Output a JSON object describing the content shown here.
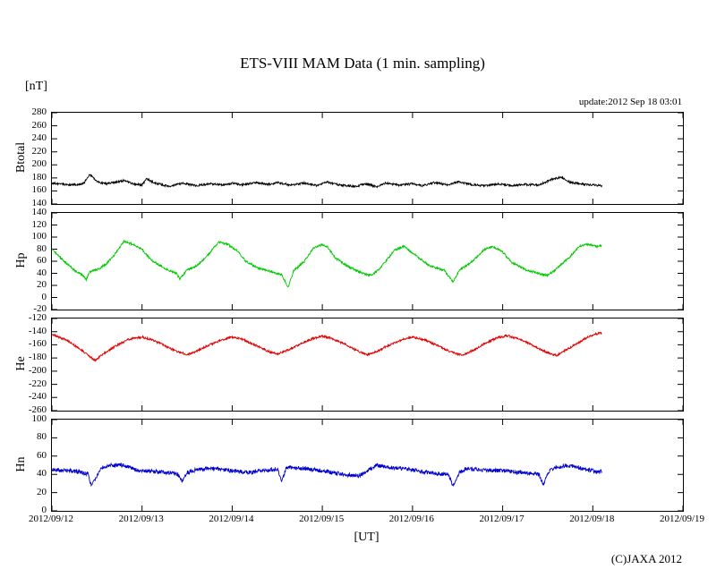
{
  "title": "ETS-VIII MAM Data (1 min. sampling)",
  "unit_label": "[nT]",
  "update_text": "update:2012 Sep 18 03:01",
  "copyright": "(C)JAXA 2012",
  "x_axis": {
    "label": "[UT]",
    "lim": [
      0,
      7
    ],
    "tick_labels": [
      "2012/09/12",
      "2012/09/13",
      "2012/09/14",
      "2012/09/15",
      "2012/09/16",
      "2012/09/17",
      "2012/09/18",
      "2012/09/19"
    ]
  },
  "chart_data": [
    {
      "type": "line",
      "ylabel": "Btotal",
      "color": "#000000",
      "ylim": [
        140,
        280
      ],
      "ytick_step": 20,
      "noise_amp": 1.6,
      "x_end": 6.1,
      "keypoints": [
        [
          0,
          172
        ],
        [
          0.2,
          169
        ],
        [
          0.35,
          171
        ],
        [
          0.42,
          186
        ],
        [
          0.5,
          174
        ],
        [
          0.6,
          171
        ],
        [
          0.8,
          176
        ],
        [
          0.9,
          171
        ],
        [
          1.0,
          169
        ],
        [
          1.05,
          178
        ],
        [
          1.15,
          172
        ],
        [
          1.3,
          167
        ],
        [
          1.45,
          172
        ],
        [
          1.6,
          168
        ],
        [
          1.75,
          171
        ],
        [
          1.9,
          169
        ],
        [
          2.0,
          172
        ],
        [
          2.1,
          169
        ],
        [
          2.25,
          173
        ],
        [
          2.4,
          170
        ],
        [
          2.5,
          173
        ],
        [
          2.65,
          169
        ],
        [
          2.8,
          172
        ],
        [
          2.95,
          168
        ],
        [
          3.05,
          174
        ],
        [
          3.2,
          169
        ],
        [
          3.35,
          167
        ],
        [
          3.5,
          171
        ],
        [
          3.6,
          166
        ],
        [
          3.7,
          172
        ],
        [
          3.85,
          169
        ],
        [
          4.0,
          171
        ],
        [
          4.1,
          168
        ],
        [
          4.25,
          173
        ],
        [
          4.4,
          169
        ],
        [
          4.5,
          174
        ],
        [
          4.65,
          170
        ],
        [
          4.8,
          168
        ],
        [
          4.95,
          171
        ],
        [
          5.1,
          168
        ],
        [
          5.25,
          170
        ],
        [
          5.4,
          169
        ],
        [
          5.55,
          178
        ],
        [
          5.65,
          181
        ],
        [
          5.75,
          173
        ],
        [
          5.9,
          170
        ],
        [
          6.0,
          169
        ],
        [
          6.1,
          168
        ]
      ]
    },
    {
      "type": "line",
      "ylabel": "Hp",
      "color": "#00c800",
      "ylim": [
        -20,
        140
      ],
      "ytick_step": 20,
      "noise_amp": 1.8,
      "x_end": 6.1,
      "keypoints": [
        [
          0,
          80
        ],
        [
          0.1,
          65
        ],
        [
          0.25,
          45
        ],
        [
          0.33,
          38
        ],
        [
          0.38,
          30
        ],
        [
          0.42,
          42
        ],
        [
          0.5,
          46
        ],
        [
          0.6,
          55
        ],
        [
          0.7,
          72
        ],
        [
          0.8,
          93
        ],
        [
          0.9,
          88
        ],
        [
          1.0,
          80
        ],
        [
          1.1,
          62
        ],
        [
          1.25,
          48
        ],
        [
          1.38,
          40
        ],
        [
          1.42,
          31
        ],
        [
          1.5,
          46
        ],
        [
          1.6,
          52
        ],
        [
          1.7,
          65
        ],
        [
          1.85,
          92
        ],
        [
          1.95,
          88
        ],
        [
          2.05,
          78
        ],
        [
          2.15,
          60
        ],
        [
          2.3,
          48
        ],
        [
          2.45,
          42
        ],
        [
          2.55,
          38
        ],
        [
          2.62,
          16
        ],
        [
          2.68,
          44
        ],
        [
          2.8,
          60
        ],
        [
          2.9,
          82
        ],
        [
          3.0,
          88
        ],
        [
          3.05,
          85
        ],
        [
          3.15,
          65
        ],
        [
          3.3,
          50
        ],
        [
          3.45,
          40
        ],
        [
          3.55,
          36
        ],
        [
          3.65,
          50
        ],
        [
          3.8,
          78
        ],
        [
          3.9,
          85
        ],
        [
          3.95,
          80
        ],
        [
          4.1,
          62
        ],
        [
          4.2,
          52
        ],
        [
          4.35,
          45
        ],
        [
          4.45,
          26
        ],
        [
          4.52,
          45
        ],
        [
          4.65,
          58
        ],
        [
          4.8,
          80
        ],
        [
          4.9,
          84
        ],
        [
          5.0,
          75
        ],
        [
          5.1,
          58
        ],
        [
          5.25,
          46
        ],
        [
          5.4,
          40
        ],
        [
          5.5,
          36
        ],
        [
          5.6,
          48
        ],
        [
          5.75,
          68
        ],
        [
          5.85,
          85
        ],
        [
          5.95,
          88
        ],
        [
          6.05,
          84
        ],
        [
          6.1,
          86
        ]
      ]
    },
    {
      "type": "line",
      "ylabel": "He",
      "color": "#e00000",
      "ylim": [
        -260,
        -120
      ],
      "ytick_step": 20,
      "noise_amp": 1.6,
      "x_end": 6.1,
      "keypoints": [
        [
          0,
          -144
        ],
        [
          0.15,
          -152
        ],
        [
          0.3,
          -165
        ],
        [
          0.42,
          -178
        ],
        [
          0.48,
          -184
        ],
        [
          0.55,
          -176
        ],
        [
          0.7,
          -162
        ],
        [
          0.85,
          -152
        ],
        [
          1.0,
          -148
        ],
        [
          1.1,
          -152
        ],
        [
          1.2,
          -158
        ],
        [
          1.35,
          -168
        ],
        [
          1.5,
          -175
        ],
        [
          1.6,
          -170
        ],
        [
          1.75,
          -160
        ],
        [
          1.9,
          -152
        ],
        [
          2.0,
          -148
        ],
        [
          2.1,
          -151
        ],
        [
          2.25,
          -160
        ],
        [
          2.4,
          -170
        ],
        [
          2.5,
          -174
        ],
        [
          2.6,
          -169
        ],
        [
          2.75,
          -159
        ],
        [
          2.9,
          -150
        ],
        [
          3.0,
          -147
        ],
        [
          3.1,
          -150
        ],
        [
          3.25,
          -159
        ],
        [
          3.4,
          -170
        ],
        [
          3.5,
          -175
        ],
        [
          3.6,
          -170
        ],
        [
          3.75,
          -160
        ],
        [
          3.9,
          -151
        ],
        [
          4.0,
          -148
        ],
        [
          4.15,
          -153
        ],
        [
          4.3,
          -163
        ],
        [
          4.45,
          -172
        ],
        [
          4.55,
          -176
        ],
        [
          4.65,
          -170
        ],
        [
          4.8,
          -158
        ],
        [
          4.95,
          -149
        ],
        [
          5.05,
          -146
        ],
        [
          5.2,
          -152
        ],
        [
          5.35,
          -162
        ],
        [
          5.5,
          -172
        ],
        [
          5.6,
          -176
        ],
        [
          5.7,
          -168
        ],
        [
          5.85,
          -156
        ],
        [
          5.95,
          -148
        ],
        [
          6.05,
          -143
        ],
        [
          6.1,
          -142
        ]
      ]
    },
    {
      "type": "line",
      "ylabel": "Hn",
      "color": "#0000d0",
      "ylim": [
        0,
        100
      ],
      "ytick_step": 20,
      "noise_amp": 2.2,
      "x_end": 6.1,
      "keypoints": [
        [
          0,
          45
        ],
        [
          0.15,
          44
        ],
        [
          0.3,
          43
        ],
        [
          0.4,
          40
        ],
        [
          0.44,
          27
        ],
        [
          0.5,
          38
        ],
        [
          0.55,
          47
        ],
        [
          0.65,
          50
        ],
        [
          0.8,
          50
        ],
        [
          0.9,
          46
        ],
        [
          1.0,
          44
        ],
        [
          1.15,
          43
        ],
        [
          1.3,
          42
        ],
        [
          1.4,
          40
        ],
        [
          1.45,
          32
        ],
        [
          1.5,
          42
        ],
        [
          1.6,
          45
        ],
        [
          1.75,
          47
        ],
        [
          1.9,
          45
        ],
        [
          2.0,
          44
        ],
        [
          2.1,
          43
        ],
        [
          2.2,
          42
        ],
        [
          2.35,
          44
        ],
        [
          2.5,
          46
        ],
        [
          2.55,
          32
        ],
        [
          2.6,
          48
        ],
        [
          2.7,
          47
        ],
        [
          2.85,
          46
        ],
        [
          3.0,
          44
        ],
        [
          3.1,
          42
        ],
        [
          3.25,
          40
        ],
        [
          3.4,
          38
        ],
        [
          3.5,
          44
        ],
        [
          3.6,
          50
        ],
        [
          3.7,
          48
        ],
        [
          3.85,
          47
        ],
        [
          4.0,
          45
        ],
        [
          4.1,
          43
        ],
        [
          4.25,
          41
        ],
        [
          4.4,
          40
        ],
        [
          4.45,
          27
        ],
        [
          4.52,
          42
        ],
        [
          4.6,
          46
        ],
        [
          4.75,
          45
        ],
        [
          4.9,
          44
        ],
        [
          5.0,
          44
        ],
        [
          5.1,
          43
        ],
        [
          5.25,
          42
        ],
        [
          5.4,
          40
        ],
        [
          5.45,
          29
        ],
        [
          5.52,
          44
        ],
        [
          5.6,
          48
        ],
        [
          5.75,
          50
        ],
        [
          5.85,
          47
        ],
        [
          5.95,
          45
        ],
        [
          6.05,
          43
        ],
        [
          6.1,
          43
        ]
      ]
    }
  ]
}
